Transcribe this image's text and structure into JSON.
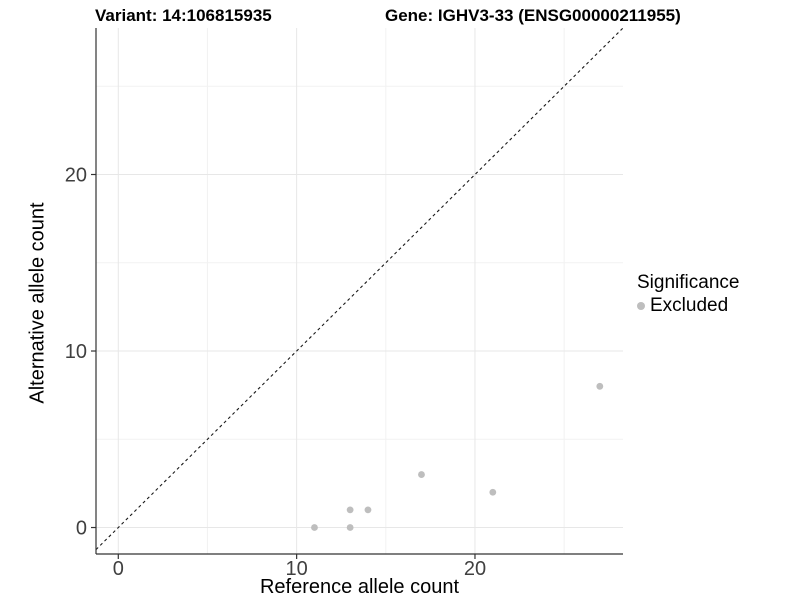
{
  "header": {
    "variant_title": "Variant: 14:106815935",
    "gene_title": "Gene: IGHV3-33 (ENSG00000211955)"
  },
  "chart_data": {
    "type": "scatter",
    "titles": {
      "left": "Variant: 14:106815935",
      "right": "Gene: IGHV3-33 (ENSG00000211955)"
    },
    "xlabel": "Reference allele count",
    "ylabel": "Alternative allele count",
    "xlim": [
      -1.25,
      28.3
    ],
    "ylim": [
      -1.5,
      28.3
    ],
    "x_ticks": [
      0,
      10,
      20
    ],
    "x_tick_labels": [
      "0",
      "10",
      "20"
    ],
    "y_ticks": [
      0,
      10,
      20
    ],
    "y_tick_labels": [
      "0",
      "10",
      "20"
    ],
    "x_minor_gridlines": [
      5,
      15,
      25
    ],
    "y_minor_gridlines": [
      5,
      15,
      25
    ],
    "grid": true,
    "legend": {
      "position": "right",
      "title": "Significance",
      "entries": [
        {
          "label": "Excluded",
          "color": "#bebebe"
        }
      ]
    },
    "reference_line": {
      "type": "identity",
      "slope": 1,
      "intercept": 0,
      "style": "dashed",
      "color": "#1a1a1a"
    },
    "series": [
      {
        "name": "Excluded",
        "color": "#bebebe",
        "points": [
          {
            "x": 11,
            "y": 0
          },
          {
            "x": 13,
            "y": 0
          },
          {
            "x": 13,
            "y": 1
          },
          {
            "x": 14,
            "y": 1
          },
          {
            "x": 17,
            "y": 3
          },
          {
            "x": 21,
            "y": 2
          },
          {
            "x": 27,
            "y": 8
          }
        ]
      }
    ],
    "colors": {
      "point": "#bebebe",
      "grid_major": "#e7e7e7",
      "grid_minor": "#f2f2f2",
      "axis_line": "#333333",
      "tick_text": "#404040",
      "reference_line": "#1a1a1a"
    }
  }
}
